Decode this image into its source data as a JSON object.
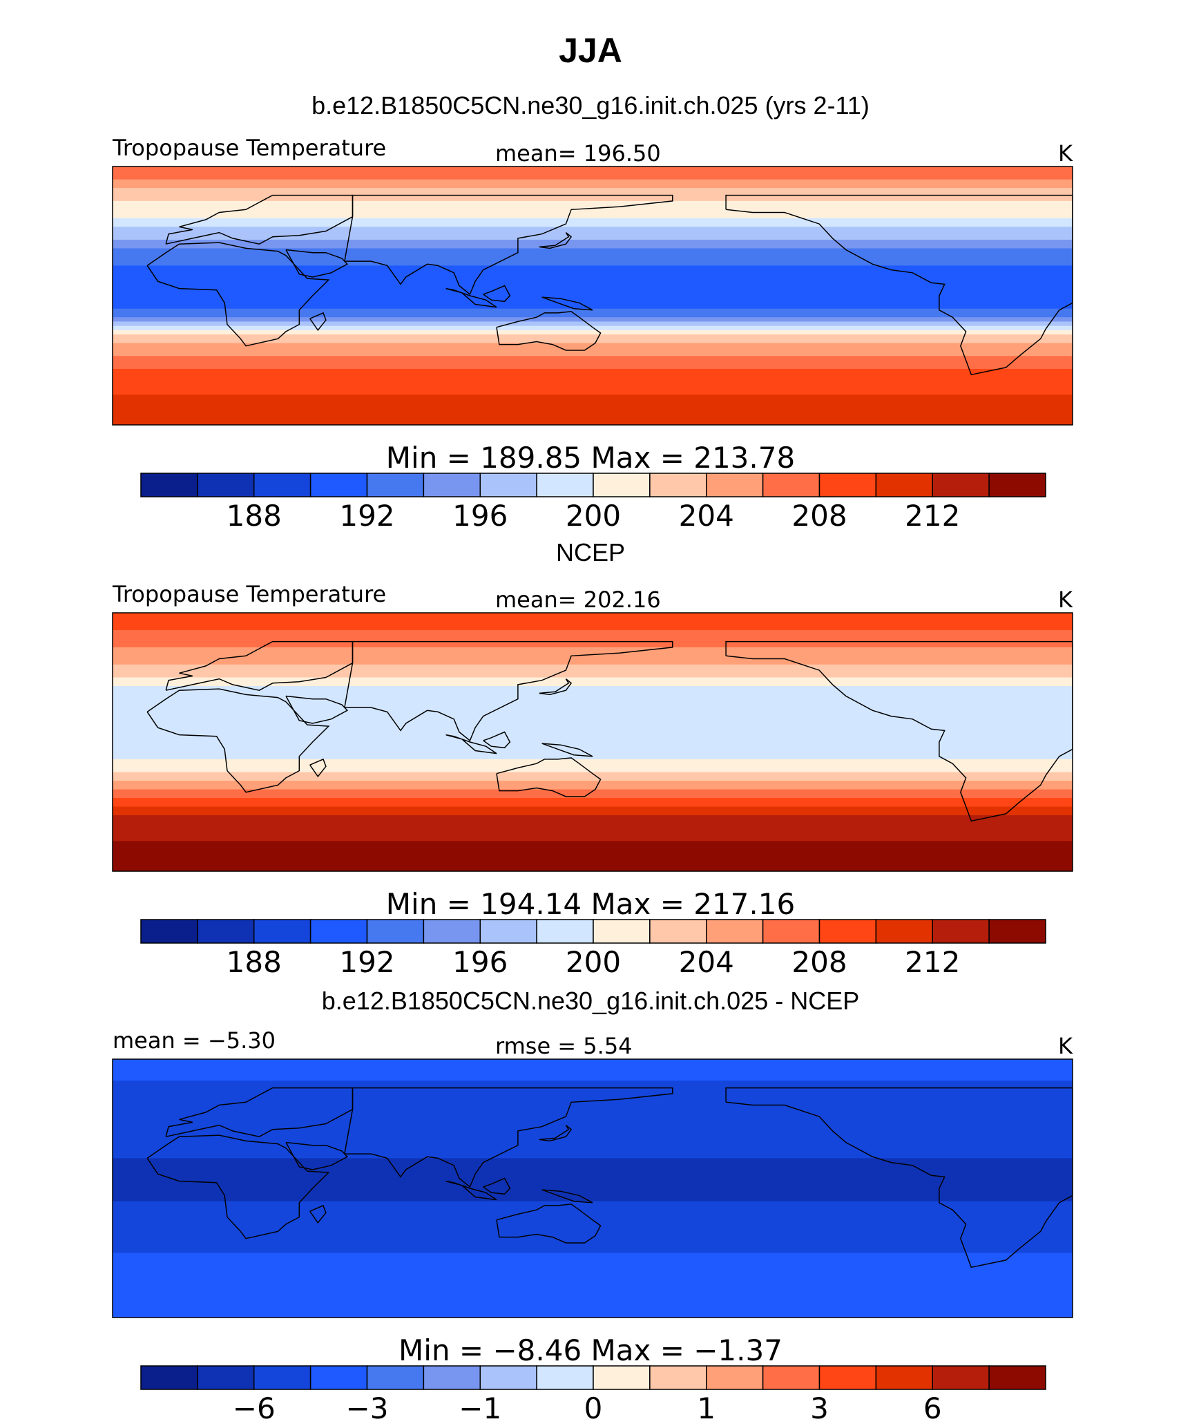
{
  "page": {
    "season_title": "JJA",
    "case_title": "b.e12.B1850C5CN.ne30_g16.init.ch.025 (yrs 2-11)",
    "obs_title": "NCEP",
    "diff_title": "b.e12.B1850C5CN.ne30_g16.init.ch.025 - NCEP"
  },
  "chart_data": [
    {
      "type": "heatmap",
      "left_label": "Tropopause Temperature",
      "center_label": "mean=  196.50",
      "units": "K",
      "min_max_text": "Min  =  189.85  Max  =  213.78",
      "colorbar_ticks": [
        "188",
        "192",
        "196",
        "200",
        "204",
        "208",
        "212"
      ],
      "colorbar_tick_positions": [
        2,
        4,
        6,
        8,
        10,
        12,
        14
      ],
      "colorbar_colors": [
        "#0a1e8c",
        "#0f32b4",
        "#1446dc",
        "#1e5aff",
        "#4678f0",
        "#7896f0",
        "#aac3fa",
        "#d2e6ff",
        "#fff0dc",
        "#ffc8aa",
        "#ffa078",
        "#ff6e46",
        "#ff4614",
        "#e13200",
        "#b41e0a",
        "#8c0a00"
      ],
      "zonal_profile": [
        {
          "lat": 90,
          "value": 208
        },
        {
          "lat": 70,
          "value": 203
        },
        {
          "lat": 50,
          "value": 199
        },
        {
          "lat": 30,
          "value": 193
        },
        {
          "lat": 10,
          "value": 191
        },
        {
          "lat": -10,
          "value": 192
        },
        {
          "lat": -30,
          "value": 203
        },
        {
          "lat": -50,
          "value": 208
        },
        {
          "lat": -70,
          "value": 210
        },
        {
          "lat": -90,
          "value": 212
        }
      ]
    },
    {
      "type": "heatmap",
      "left_label": "Tropopause Temperature",
      "center_label": "mean=  202.16",
      "units": "K",
      "min_max_text": "Min  =  194.14  Max  =  217.16",
      "colorbar_ticks": [
        "188",
        "192",
        "196",
        "200",
        "204",
        "208",
        "212"
      ],
      "colorbar_tick_positions": [
        2,
        4,
        6,
        8,
        10,
        12,
        14
      ],
      "colorbar_colors": [
        "#0a1e8c",
        "#0f32b4",
        "#1446dc",
        "#1e5aff",
        "#4678f0",
        "#7896f0",
        "#aac3fa",
        "#d2e6ff",
        "#fff0dc",
        "#ffc8aa",
        "#ffa078",
        "#ff6e46",
        "#ff4614",
        "#e13200",
        "#b41e0a",
        "#8c0a00"
      ],
      "zonal_profile": [
        {
          "lat": 90,
          "value": 210
        },
        {
          "lat": 70,
          "value": 207
        },
        {
          "lat": 50,
          "value": 203
        },
        {
          "lat": 30,
          "value": 198
        },
        {
          "lat": 10,
          "value": 199
        },
        {
          "lat": -10,
          "value": 199
        },
        {
          "lat": -30,
          "value": 205
        },
        {
          "lat": -50,
          "value": 212
        },
        {
          "lat": -70,
          "value": 214
        },
        {
          "lat": -90,
          "value": 216
        }
      ]
    },
    {
      "type": "heatmap",
      "left_label": "mean =   −5.30",
      "center_label": "rmse =     5.54",
      "units": "K",
      "min_max_text": "Min  =    −8.46  Max  =    −1.37",
      "colorbar_ticks": [
        "−6",
        "−3",
        "−1",
        "0",
        "1",
        "3",
        "6"
      ],
      "colorbar_tick_positions": [
        2,
        4,
        6,
        8,
        10,
        12,
        14
      ],
      "colorbar_colors": [
        "#0a1e8c",
        "#0f32b4",
        "#1446dc",
        "#1e5aff",
        "#4678f0",
        "#7896f0",
        "#aac3fa",
        "#d2e6ff",
        "#fff0dc",
        "#ffc8aa",
        "#ffa078",
        "#ff6e46",
        "#ff4614",
        "#e13200",
        "#b41e0a",
        "#8c0a00"
      ],
      "zonal_profile": [
        {
          "lat": 90,
          "value": -4
        },
        {
          "lat": 60,
          "value": -5
        },
        {
          "lat": 30,
          "value": -5
        },
        {
          "lat": 10,
          "value": -7
        },
        {
          "lat": -10,
          "value": -6
        },
        {
          "lat": -30,
          "value": -5
        },
        {
          "lat": -60,
          "value": -4
        },
        {
          "lat": -90,
          "value": -4
        }
      ]
    }
  ]
}
